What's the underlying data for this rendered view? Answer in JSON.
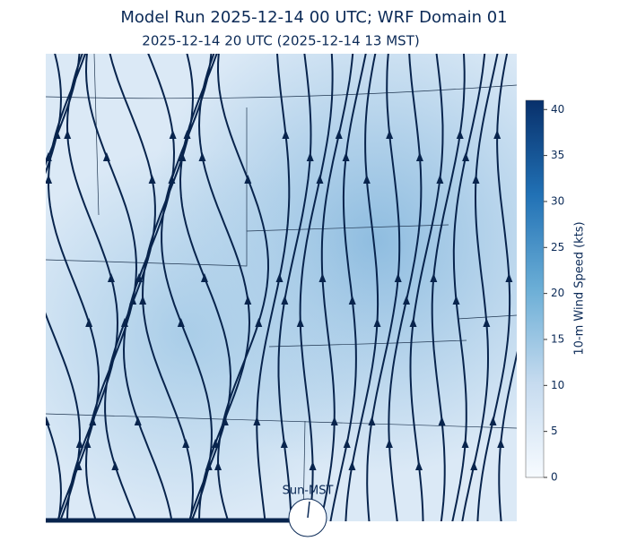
{
  "title": "Model Run 2025-12-14 00 UTC; WRF Domain 01",
  "subtitle": "2025-12-14 20 UTC  (2025-12-14 13 MST)",
  "colorbar": {
    "label": "10-m Wind Speed (kts)",
    "lim": [
      0,
      41
    ],
    "ticks": [
      0,
      5,
      10,
      15,
      20,
      25,
      30,
      35,
      40
    ]
  },
  "clock_label": "Sun-MST"
}
